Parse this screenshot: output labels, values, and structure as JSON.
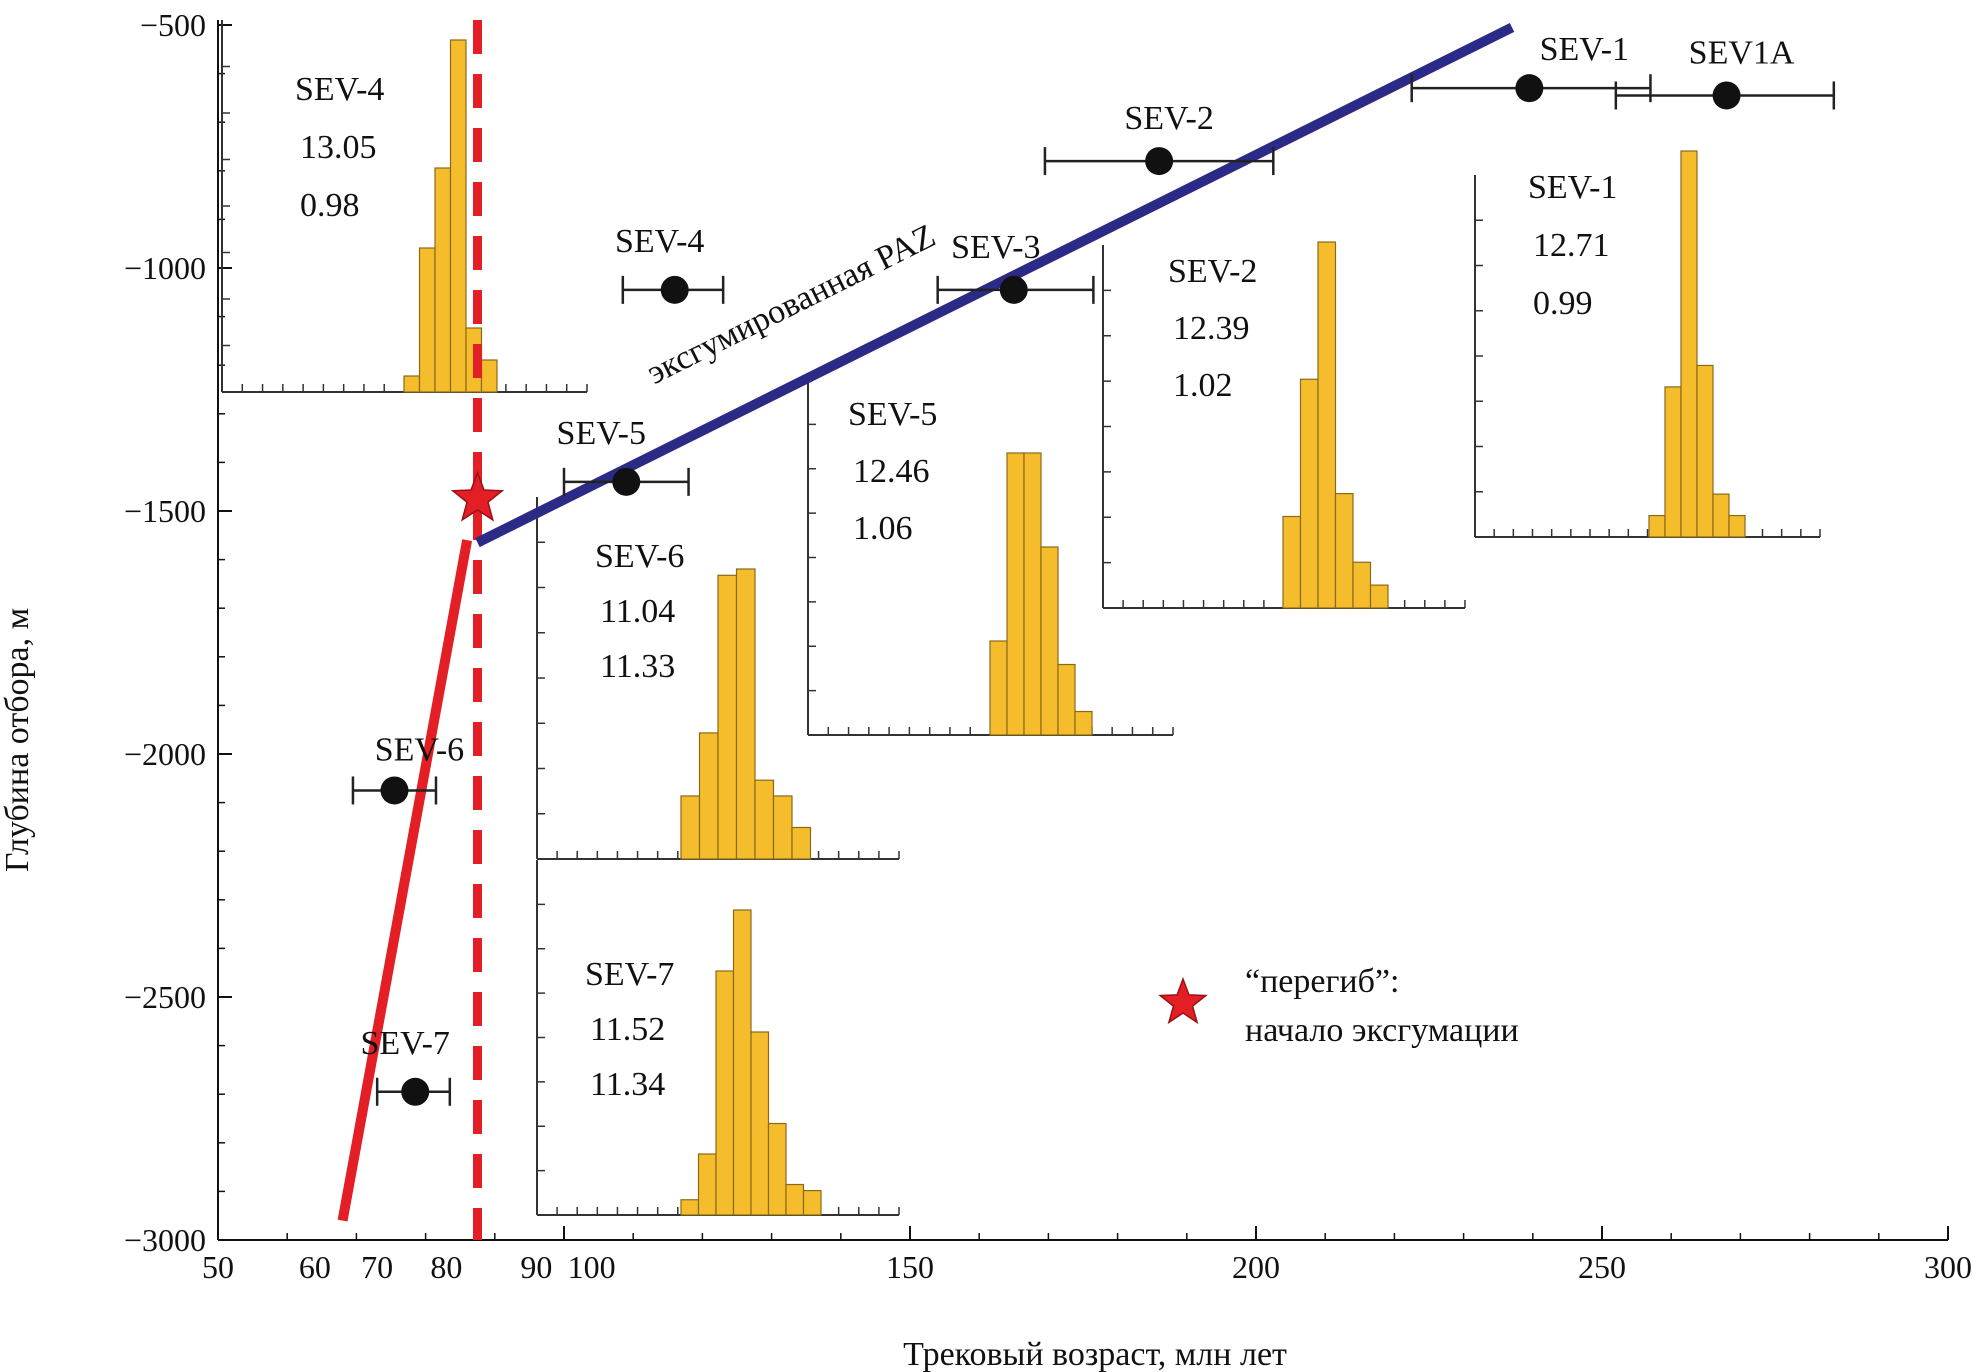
{
  "chart_data": {
    "type": "scatter",
    "xlabel": "Трековый возраст, млн лет",
    "ylabel": "Глубина отбора, м",
    "xlim": [
      50,
      300
    ],
    "ylim": [
      -3000,
      -500
    ],
    "x_tick_labels": [
      "50",
      "60",
      "70",
      "80",
      "90",
      "100",
      "150",
      "200",
      "250",
      "300"
    ],
    "y_tick_labels": [
      "−500",
      "−1000",
      "−1500",
      "−2000",
      "−2500",
      "−3000"
    ],
    "points": [
      {
        "label": "SEV-1",
        "age": 239.5,
        "err_low": 222.5,
        "err_high": 257.0,
        "depth": -630
      },
      {
        "label": "SEV1A",
        "age": 268.0,
        "err_low": 252.0,
        "err_high": 283.5,
        "depth": -645
      },
      {
        "label": "SEV-2",
        "age": 186.0,
        "err_low": 169.5,
        "err_high": 202.5,
        "depth": -780
      },
      {
        "label": "SEV-3",
        "age": 165.0,
        "err_low": 154.0,
        "err_high": 176.5,
        "depth": -1045
      },
      {
        "label": "SEV-4",
        "age": 116.0,
        "err_low": 108.5,
        "err_high": 123.0,
        "depth": -1045
      },
      {
        "label": "SEV-5",
        "age": 109.0,
        "err_low": 100.0,
        "err_high": 118.0,
        "depth": -1440
      },
      {
        "label": "SEV-6",
        "age": 75.5,
        "err_low": 69.5,
        "err_high": 81.5,
        "depth": -2075
      },
      {
        "label": "SEV-7",
        "age": 78.5,
        "err_low": 73.0,
        "err_high": 83.5,
        "depth": -2695
      }
    ],
    "lines": [
      {
        "label": "эксгумированная PAZ",
        "color": "#2b2a86",
        "x": [
          87.5,
          237.0
        ],
        "y": [
          -1565,
          -505
        ]
      },
      {
        "color": "#e31e24",
        "x": [
          68.0,
          86.0
        ],
        "y": [
          -2960,
          -1560
        ]
      }
    ],
    "inflection_age": 87.5,
    "inflection_depth": -1475,
    "histograms": [
      {
        "label": "SEV-4",
        "value1": "13.05",
        "value2": "0.98",
        "counts": [
          1,
          9,
          14,
          22,
          4,
          2
        ]
      },
      {
        "label": "SEV-1",
        "value1": "12.71",
        "value2": "0.99",
        "counts": [
          1,
          7,
          18,
          8,
          2,
          1
        ]
      },
      {
        "label": "SEV-2",
        "value1": "12.39",
        "value2": "1.02",
        "counts": [
          4,
          10,
          16,
          5,
          2,
          1
        ]
      },
      {
        "label": "SEV-5",
        "value1": "12.46",
        "value2": "1.06",
        "counts": [
          2,
          6,
          6,
          4,
          1.5,
          0.5
        ]
      },
      {
        "label": "SEV-6",
        "value1": "11.04",
        "value2": "11.33",
        "counts": [
          2,
          4,
          9,
          9.2,
          2.5,
          2,
          1
        ]
      },
      {
        "label": "SEV-7",
        "value1": "11.52",
        "value2": "11.34",
        "counts": [
          0.5,
          2,
          8,
          10,
          6,
          3,
          1,
          0.8
        ]
      }
    ],
    "legend": {
      "line1": "“перегиб”:",
      "line2": "начало эксгумации",
      "position": "lower-right"
    },
    "colors": {
      "bar": "#f5bd2c",
      "bar_stroke": "#8a6a1a",
      "paz": "#2b2a86",
      "red": "#e31e24",
      "point": "#111111"
    }
  }
}
